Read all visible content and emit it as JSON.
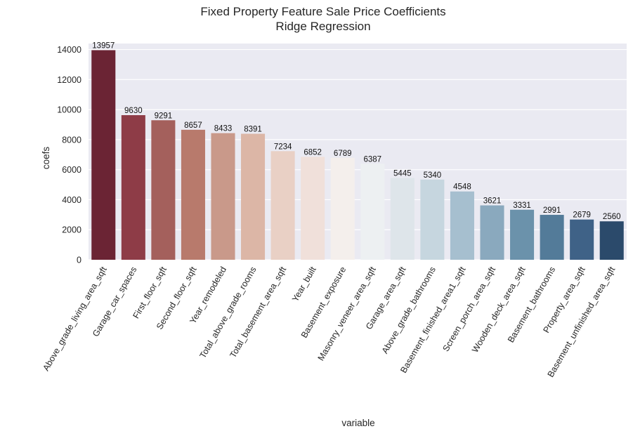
{
  "chart_data": {
    "type": "bar",
    "title": "Fixed Property Feature Sale Price Coefficients",
    "subtitle": "Ridge Regression",
    "xlabel": "variable",
    "ylabel": "coefs",
    "ylim": [
      0,
      14400
    ],
    "yticks": [
      "0",
      "2000",
      "4000",
      "6000",
      "8000",
      "10000",
      "12000",
      "14000"
    ],
    "ytick_values": [
      0,
      2000,
      4000,
      6000,
      8000,
      10000,
      12000,
      14000
    ],
    "grid": true,
    "background": "#eaeaf2",
    "categories": [
      "Above_grade_living_area_sqft",
      "Garage_car_spaces",
      "First_floor_sqft",
      "Second_floor_sqft",
      "Year_remodeled",
      "Total_above_grade_rooms",
      "Total_basement_area_sqft",
      "Year_built",
      "Basement_exposure",
      "Masonry_veneer_area_sqft",
      "Garage_area_sqft",
      "Above_grade_bathrooms",
      "Basement_finished_area1_sqft",
      "Screen_porch_area_sqft",
      "Wooden_deck_area_sqft",
      "Basement_bathrooms",
      "Property_area_sqft",
      "Basement_unfinished_area_sqft"
    ],
    "values": [
      13957,
      9630,
      9291,
      8657,
      8433,
      8391,
      7234,
      6852,
      6789,
      6387,
      5445,
      5340,
      4548,
      3621,
      3331,
      2991,
      2679,
      2560
    ],
    "colors": [
      "#6b2434",
      "#8e3c47",
      "#a4605c",
      "#b87a6c",
      "#c9998a",
      "#dcb6a6",
      "#e9d0c5",
      "#f0e0da",
      "#f4efec",
      "#edf0f2",
      "#dee5ea",
      "#c6d6df",
      "#a6bfcf",
      "#8aa9be",
      "#6b92ab",
      "#537b99",
      "#3f6287",
      "#2b4a6b"
    ]
  }
}
